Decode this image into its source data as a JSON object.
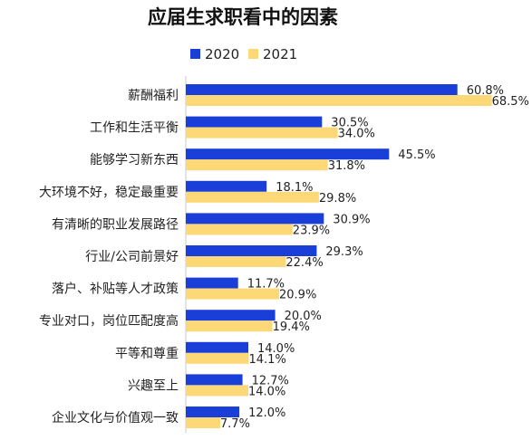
{
  "chart_data": {
    "type": "bar",
    "orientation": "horizontal",
    "title": "应届生求职看中的因素",
    "legend_position": "top",
    "categories": [
      "薪酬福利",
      "工作和生活平衡",
      "能够学习新东西",
      "大环境不好，稳定最重要",
      "有清晰的职业发展路径",
      "行业/公司前景好",
      "落户、补贴等人才政策",
      "专业对口，岗位匹配度高",
      "平等和尊重",
      "兴趣至上",
      "企业文化与价值观一致"
    ],
    "series": [
      {
        "name": "2020",
        "color": "#1a3fd8",
        "values": [
          60.8,
          30.5,
          45.5,
          18.1,
          30.9,
          29.3,
          11.7,
          20.0,
          14.0,
          12.7,
          12.0
        ],
        "labels": [
          "60.8%",
          "30.5%",
          "45.5%",
          "18.1%",
          "30.9%",
          "29.3%",
          "11.7%",
          "20.0%",
          "14.0%",
          "12.7%",
          "12.0%"
        ]
      },
      {
        "name": "2021",
        "color": "#fdd876",
        "values": [
          68.5,
          34.0,
          31.8,
          29.8,
          23.9,
          22.4,
          20.9,
          19.4,
          14.1,
          14.0,
          7.7
        ],
        "labels": [
          "68.5%",
          "34.0%",
          "31.8%",
          "29.8%",
          "23.9%",
          "22.4%",
          "20.9%",
          "19.4%",
          "14.1%",
          "14.0%",
          "7.7%"
        ]
      }
    ],
    "xlim": [
      0,
      70
    ],
    "grid": false
  }
}
